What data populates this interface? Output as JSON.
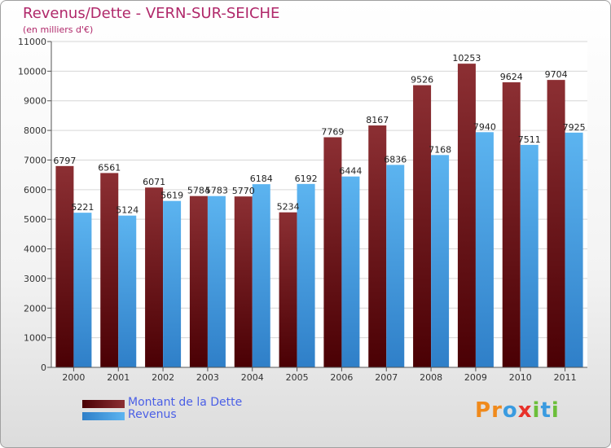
{
  "title": "Revenus/Dette - VERN-SUR-SEICHE",
  "subtitle": "(en milliers d'€)",
  "legend": {
    "debt_label": "Montant de la Dette",
    "revenue_label": "Revenus"
  },
  "logo": {
    "text": "Proxiti",
    "letters": [
      "P",
      "r",
      "o",
      "x",
      "i",
      "t",
      "i"
    ],
    "colors": [
      "#f08a1c",
      "#f08a1c",
      "#3a9be0",
      "#e8312a",
      "#6cbf3a",
      "#3a9be0",
      "#6cbf3a"
    ]
  },
  "colors": {
    "debt": "#7a1a1e",
    "revenue": "#4ea6e6",
    "title": "#b0286a",
    "legend_text": "#4a5fe6"
  },
  "chart_data": {
    "type": "bar",
    "title": "Revenus/Dette - VERN-SUR-SEICHE",
    "subtitle": "(en milliers d'€)",
    "categories": [
      "2000",
      "2001",
      "2002",
      "2003",
      "2004",
      "2005",
      "2006",
      "2007",
      "2008",
      "2009",
      "2010",
      "2011"
    ],
    "series": [
      {
        "name": "Montant de la Dette",
        "values": [
          6797,
          6561,
          6071,
          5784,
          5770,
          5234,
          7769,
          8167,
          9526,
          10253,
          9624,
          9704
        ]
      },
      {
        "name": "Revenus",
        "values": [
          5221,
          5124,
          5619,
          5783,
          6184,
          6192,
          6444,
          6836,
          7168,
          7940,
          7511,
          7925
        ]
      }
    ],
    "ylim": [
      0,
      11000
    ],
    "yticks": [
      0,
      1000,
      2000,
      3000,
      4000,
      5000,
      6000,
      7000,
      8000,
      9000,
      10000,
      11000
    ],
    "grid": true,
    "legend_position": "bottom-left"
  }
}
